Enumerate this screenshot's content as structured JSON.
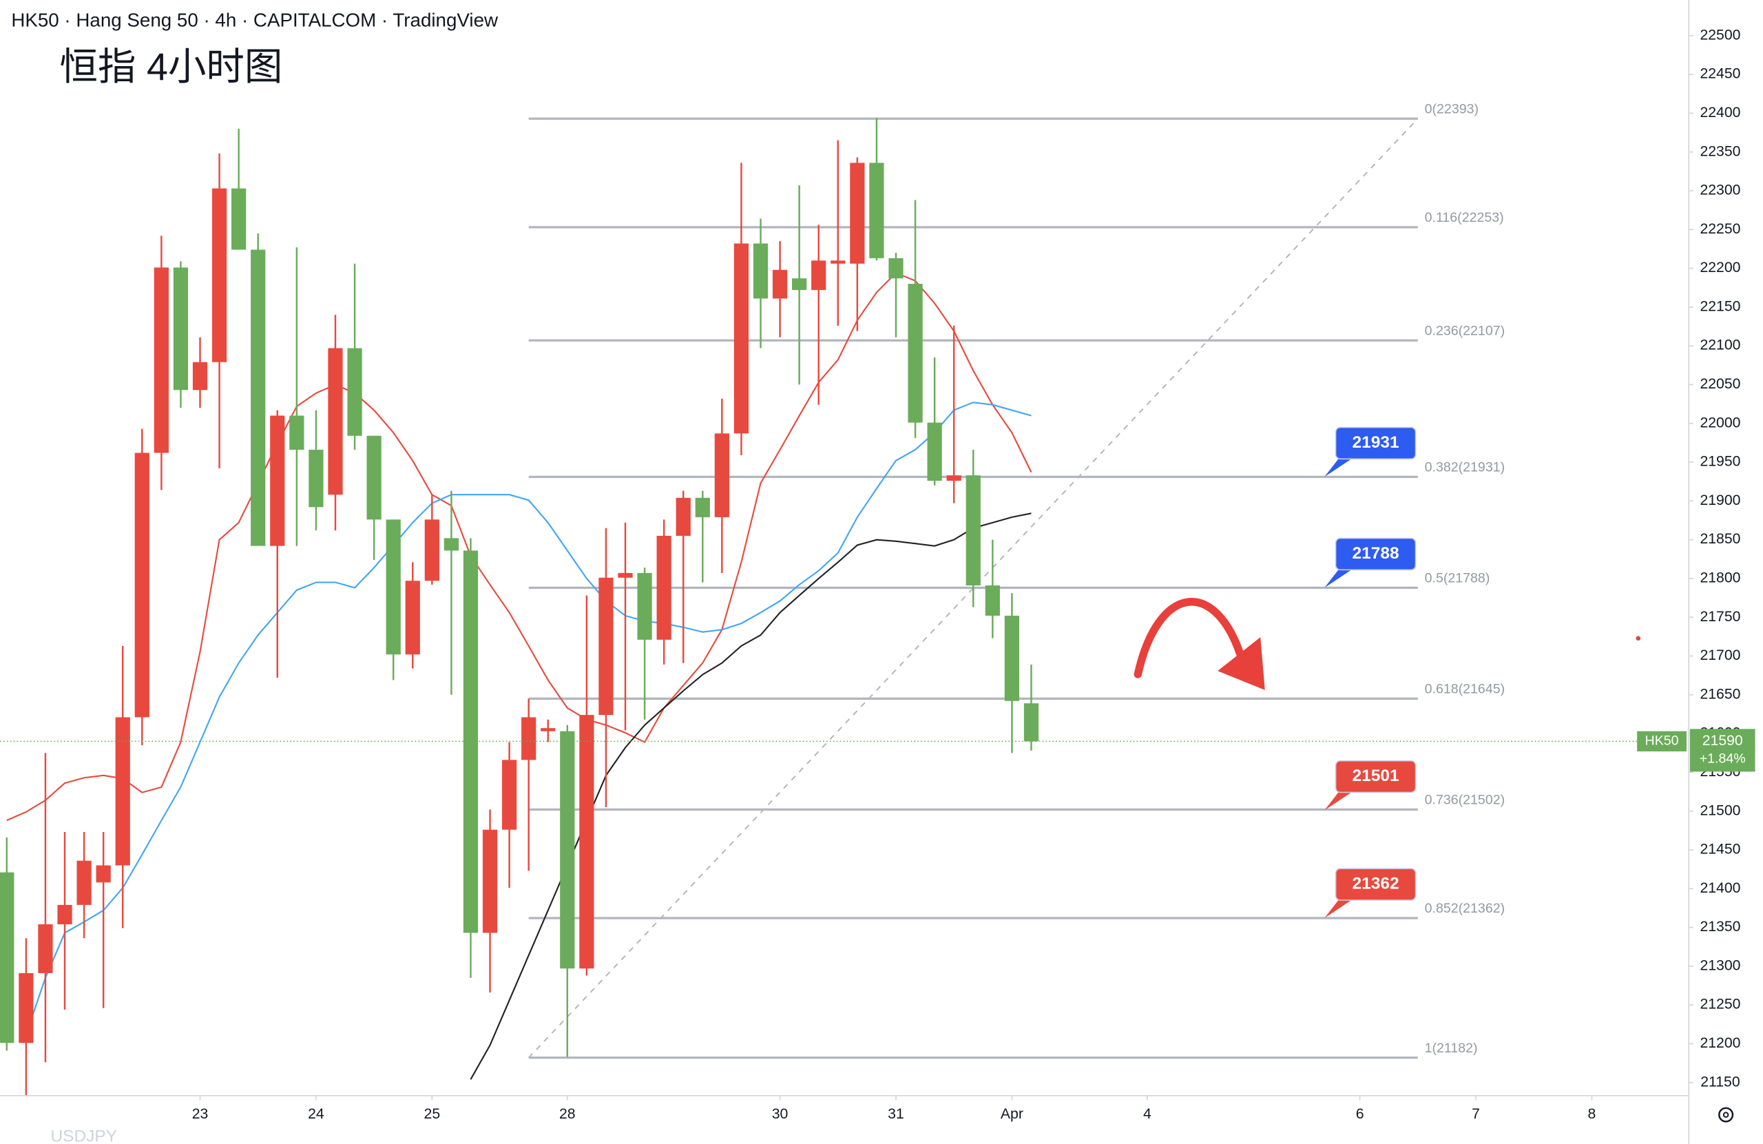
{
  "chart_data": {
    "type": "candlestick",
    "title": "HK50 · Hang Seng 50 · 4h · CAPITALCOM · TradingView",
    "annotation": "恒指 4小时图",
    "watermark": "USDJPY",
    "up_color": "#e8493e",
    "down_color": "#6aac5a",
    "open": [
      21421,
      21201,
      21291,
      21354,
      21379,
      21408,
      21430,
      21621,
      21962,
      22201,
      22043,
      22079,
      22303,
      22224,
      21842,
      22010,
      21966,
      21908,
      22097,
      21984,
      21876,
      21702,
      21797,
      21852,
      21836,
      21343,
      21476,
      21566,
      21603,
      21603,
      21297,
      21624,
      21801,
      21807,
      21721,
      21855,
      21904,
      21879,
      21987,
      22232,
      22161,
      22187,
      22172,
      22206,
      22206,
      22336,
      22213,
      22180,
      22001,
      21926,
      21933,
      21791,
      21752,
      21639
    ],
    "high": [
      21466,
      21336,
      21575,
      21473,
      21473,
      21473,
      21713,
      21993,
      22242,
      22209,
      22111,
      22348,
      22380,
      22245,
      22017,
      22227,
      22017,
      22140,
      22206,
      21984,
      21876,
      21821,
      21908,
      21913,
      21852,
      21502,
      21589,
      21645,
      21618,
      21611,
      21778,
      21865,
      21872,
      21814,
      21876,
      21913,
      21913,
      22032,
      22336,
      22264,
      22235,
      22307,
      22256,
      22365,
      22343,
      22394,
      22220,
      22288,
      22085,
      22126,
      21966,
      21850,
      21781,
      21689
    ],
    "low": [
      21191,
      21133,
      21176,
      21244,
      21336,
      21246,
      21349,
      21585,
      21914,
      22020,
      22020,
      21942,
      22224,
      21842,
      21672,
      21842,
      21862,
      21862,
      21966,
      21824,
      21669,
      21684,
      21792,
      21650,
      21285,
      21266,
      21401,
      21423,
      21589,
      21183,
      21288,
      21505,
      21604,
      21618,
      21689,
      21691,
      21795,
      21807,
      21959,
      22097,
      22111,
      22050,
      22024,
      22126,
      22119,
      22210,
      22111,
      21981,
      21920,
      21897,
      21763,
      21723,
      21575,
      21578
    ],
    "close": [
      21201,
      21291,
      21354,
      21379,
      21436,
      21430,
      21621,
      21962,
      22201,
      22043,
      22079,
      22303,
      22224,
      21842,
      22010,
      21966,
      21892,
      22097,
      21984,
      21876,
      21702,
      21797,
      21876,
      21836,
      21343,
      21476,
      21566,
      21621,
      21607,
      21297,
      21624,
      21801,
      21807,
      21721,
      21855,
      21904,
      21879,
      21987,
      22232,
      22161,
      22198,
      22172,
      22210,
      22210,
      22336,
      22213,
      22187,
      22001,
      21926,
      21933,
      21791,
      21752,
      21642,
      21590
    ],
    "lines": [
      {
        "color": "#e8493e",
        "values": [
          21488,
          21499,
          21514,
          21536,
          21543,
          21546,
          21542,
          21524,
          21531,
          21589,
          21705,
          21850,
          21872,
          21923,
          21974,
          22022,
          22039,
          22050,
          22039,
          22017,
          21988,
          21952,
          21908,
          21894,
          21829,
          21792,
          21756,
          21713,
          21669,
          21633,
          21618,
          21611,
          21601,
          21589,
          21633,
          21662,
          21691,
          21734,
          21821,
          21923,
          21966,
          22010,
          22053,
          22082,
          22133,
          22169,
          22194,
          22184,
          22155,
          22119,
          22068,
          22024,
          21988,
          21937
        ]
      },
      {
        "color": "#42a5f5",
        "values": [
          null,
          21212,
          21285,
          21343,
          21357,
          21372,
          21401,
          21444,
          21488,
          21531,
          21589,
          21647,
          21691,
          21727,
          21756,
          21785,
          21795,
          21795,
          21788,
          21814,
          21843,
          21872,
          21897,
          21908,
          21908,
          21908,
          21908,
          21901,
          21872,
          21836,
          21800,
          21771,
          21752,
          21745,
          21742,
          21737,
          21731,
          21734,
          21742,
          21756,
          21771,
          21792,
          21810,
          21833,
          21879,
          21916,
          21952,
          21966,
          21988,
          22017,
          22027,
          22024,
          22017,
          22010
        ]
      },
      {
        "color": "#222222",
        "values": [
          null,
          null,
          null,
          null,
          null,
          null,
          null,
          null,
          null,
          null,
          null,
          null,
          null,
          null,
          null,
          null,
          null,
          null,
          null,
          null,
          null,
          null,
          null,
          null,
          21154,
          21198,
          21256,
          21314,
          21372,
          21430,
          21488,
          21546,
          21582,
          21611,
          21633,
          21655,
          21676,
          21691,
          21713,
          21727,
          21756,
          21778,
          21800,
          21821,
          21843,
          21850,
          21848,
          21845,
          21842,
          21850,
          21865,
          21872,
          21879,
          21884
        ]
      }
    ],
    "fib_x": [
      27,
      73
    ],
    "fib_color": "#b2b5be",
    "fib_levels": [
      {
        "value": 22393,
        "label": "0(22393)"
      },
      {
        "value": 22253,
        "label": "0.116(22253)"
      },
      {
        "value": 22107,
        "label": "0.236(22107)"
      },
      {
        "value": 21931,
        "label": "0.382(21931)"
      },
      {
        "value": 21788,
        "label": "0.5(21788)"
      },
      {
        "value": 21645,
        "label": "0.618(21645)"
      },
      {
        "value": 21502,
        "label": "0.736(21502)"
      },
      {
        "value": 21362,
        "label": "0.852(21362)"
      },
      {
        "value": 21182,
        "label": "1(21182)"
      }
    ],
    "callouts": [
      {
        "value": 21931,
        "color": "#2e5bf0"
      },
      {
        "value": 21788,
        "color": "#2e5bf0"
      },
      {
        "value": 21501,
        "color": "#e8493e"
      },
      {
        "value": 21362,
        "color": "#e8493e"
      }
    ],
    "last_price": {
      "symbol": "HK50",
      "value": 21590,
      "change": "+1.84%",
      "color": "#6aac5a"
    },
    "xlim": [
      -0.35,
      86.9
    ],
    "xticks": [
      {
        "value": 10,
        "label": "23"
      },
      {
        "value": 16,
        "label": "24"
      },
      {
        "value": 22,
        "label": "25"
      },
      {
        "value": 29,
        "label": "28"
      },
      {
        "value": 40,
        "label": "30"
      },
      {
        "value": 46,
        "label": "31"
      },
      {
        "value": 52,
        "label": "Apr"
      },
      {
        "value": 59,
        "label": "4"
      },
      {
        "value": 70,
        "label": "6"
      },
      {
        "value": 76,
        "label": "7"
      },
      {
        "value": 82,
        "label": "8"
      }
    ],
    "ylim": [
      21133,
      22546
    ],
    "yticks": [
      21150,
      21200,
      21250,
      21300,
      21350,
      21400,
      21450,
      21500,
      21550,
      21600,
      21650,
      21700,
      21750,
      21800,
      21850,
      21900,
      21950,
      22000,
      22050,
      22100,
      22150,
      22200,
      22250,
      22300,
      22350,
      22400,
      22450,
      22500
    ],
    "grid": false
  }
}
